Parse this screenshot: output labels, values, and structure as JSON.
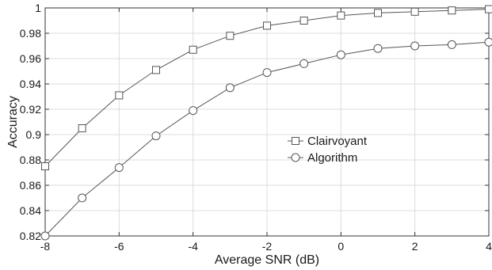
{
  "chart_data": {
    "type": "line",
    "xlabel": "Average SNR (dB)",
    "ylabel": "Accuracy",
    "xlim": [
      -8,
      4
    ],
    "ylim": [
      0.82,
      1.0
    ],
    "x_ticks": [
      -8,
      -6,
      -4,
      -2,
      0,
      2,
      4
    ],
    "x_tick_labels": [
      "-8",
      "-6",
      "-4",
      "-2",
      "0",
      "2",
      "4"
    ],
    "y_ticks": [
      0.82,
      0.84,
      0.86,
      0.88,
      0.9,
      0.92,
      0.94,
      0.96,
      0.98,
      1.0
    ],
    "y_tick_labels": [
      "0.82",
      "0.84",
      "0.86",
      "0.88",
      "0.9",
      "0.92",
      "0.94",
      "0.96",
      "0.98",
      "1"
    ],
    "grid": true,
    "legend_position": "center-right",
    "x": [
      -8,
      -7,
      -6,
      -5,
      -4,
      -3,
      -2,
      -1,
      0,
      1,
      2,
      3,
      4
    ],
    "series": [
      {
        "name": "Clairvoyant",
        "marker": "square",
        "values": [
          0.875,
          0.905,
          0.931,
          0.951,
          0.967,
          0.978,
          0.986,
          0.99,
          0.994,
          0.996,
          0.997,
          0.998,
          0.999
        ]
      },
      {
        "name": "Algorithm",
        "marker": "circle",
        "values": [
          0.82,
          0.85,
          0.874,
          0.899,
          0.919,
          0.937,
          0.949,
          0.956,
          0.963,
          0.968,
          0.97,
          0.971,
          0.973
        ]
      }
    ],
    "colors": {
      "line": "#555555",
      "grid": "#dcdcdc",
      "axis": "#333333"
    }
  }
}
